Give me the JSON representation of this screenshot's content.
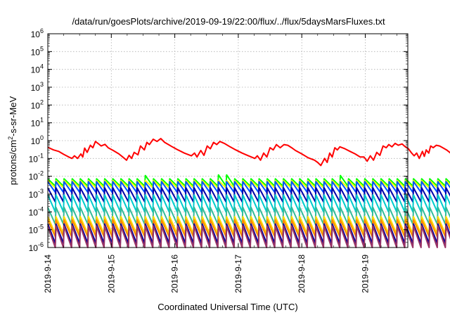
{
  "chart_data": {
    "type": "line",
    "title": "/data/run/goesPlots/archive/2019-09-19/22:00/flux/../flux/5daysMarsFluxes.txt",
    "xlabel": "Coordinated Universal Time (UTC)",
    "ylabel": "protons/cm²-s-sr-MeV",
    "ylabel_parts": {
      "pre": "protons/cm",
      "sup": "2",
      "post": "-s-sr-MeV"
    },
    "yscale": "log",
    "ylim": [
      1e-06,
      1000000.0
    ],
    "y_ticks": [
      {
        "mant": "10",
        "exp": "-6"
      },
      {
        "mant": "10",
        "exp": "-5"
      },
      {
        "mant": "10",
        "exp": "-4"
      },
      {
        "mant": "10",
        "exp": "-3"
      },
      {
        "mant": "10",
        "exp": "-2"
      },
      {
        "mant": "10",
        "exp": "-1"
      },
      {
        "mant": "10",
        "exp": "0"
      },
      {
        "mant": "10",
        "exp": "1"
      },
      {
        "mant": "10",
        "exp": "2"
      },
      {
        "mant": "10",
        "exp": "3"
      },
      {
        "mant": "10",
        "exp": "4"
      },
      {
        "mant": "10",
        "exp": "5"
      },
      {
        "mant": "10",
        "exp": "6"
      }
    ],
    "x_ticks": [
      "2019-9-14",
      "2019-9-15",
      "2019-9-16",
      "2019-9-17",
      "2019-9-18",
      "2019-9-19"
    ],
    "xlim": [
      "2019-09-14 00:00",
      "2019-09-19 22:00"
    ],
    "grid": true,
    "series": [
      {
        "color": "#ff0000",
        "values": [
          [
            0.0,
            0.42
          ],
          [
            0.09,
            0.3
          ],
          [
            0.17,
            0.25
          ],
          [
            0.25,
            0.17
          ],
          [
            0.33,
            0.12
          ],
          [
            0.38,
            0.1
          ],
          [
            0.42,
            0.14
          ],
          [
            0.47,
            0.1
          ],
          [
            0.52,
            0.18
          ],
          [
            0.55,
            0.12
          ],
          [
            0.58,
            0.38
          ],
          [
            0.62,
            0.22
          ],
          [
            0.67,
            0.55
          ],
          [
            0.71,
            0.4
          ],
          [
            0.75,
            0.9
          ],
          [
            0.79,
            0.7
          ],
          [
            0.84,
            0.5
          ],
          [
            0.9,
            0.62
          ],
          [
            0.95,
            0.4
          ],
          [
            1.03,
            0.28
          ],
          [
            1.12,
            0.18
          ],
          [
            1.18,
            0.12
          ],
          [
            1.24,
            0.08
          ],
          [
            1.28,
            0.15
          ],
          [
            1.32,
            0.1
          ],
          [
            1.36,
            0.22
          ],
          [
            1.42,
            0.16
          ],
          [
            1.46,
            0.5
          ],
          [
            1.52,
            0.3
          ],
          [
            1.56,
            0.8
          ],
          [
            1.6,
            0.6
          ],
          [
            1.66,
            1.2
          ],
          [
            1.72,
            0.9
          ],
          [
            1.78,
            1.3
          ],
          [
            1.84,
            0.8
          ],
          [
            1.9,
            0.6
          ],
          [
            1.96,
            0.45
          ],
          [
            2.05,
            0.3
          ],
          [
            2.15,
            0.2
          ],
          [
            2.26,
            0.14
          ],
          [
            2.31,
            0.2
          ],
          [
            2.35,
            0.12
          ],
          [
            2.41,
            0.28
          ],
          [
            2.46,
            0.15
          ],
          [
            2.51,
            0.5
          ],
          [
            2.56,
            0.35
          ],
          [
            2.61,
            0.8
          ],
          [
            2.66,
            0.6
          ],
          [
            2.71,
            0.9
          ],
          [
            2.78,
            0.7
          ],
          [
            2.87,
            0.45
          ],
          [
            2.96,
            0.3
          ],
          [
            3.06,
            0.2
          ],
          [
            3.16,
            0.14
          ],
          [
            3.26,
            0.1
          ],
          [
            3.3,
            0.14
          ],
          [
            3.35,
            0.08
          ],
          [
            3.4,
            0.2
          ],
          [
            3.45,
            0.12
          ],
          [
            3.5,
            0.4
          ],
          [
            3.55,
            0.3
          ],
          [
            3.6,
            0.6
          ],
          [
            3.66,
            0.4
          ],
          [
            3.72,
            0.6
          ],
          [
            3.78,
            0.55
          ],
          [
            3.84,
            0.4
          ],
          [
            3.9,
            0.28
          ],
          [
            4.0,
            0.18
          ],
          [
            4.1,
            0.11
          ],
          [
            4.2,
            0.08
          ],
          [
            4.25,
            0.06
          ],
          [
            4.3,
            0.04
          ],
          [
            4.36,
            0.1
          ],
          [
            4.4,
            0.06
          ],
          [
            4.44,
            0.2
          ],
          [
            4.48,
            0.12
          ],
          [
            4.52,
            0.4
          ],
          [
            4.56,
            0.3
          ],
          [
            4.6,
            0.45
          ],
          [
            4.68,
            0.35
          ],
          [
            4.76,
            0.25
          ],
          [
            4.84,
            0.18
          ],
          [
            4.92,
            0.12
          ],
          [
            4.98,
            0.12
          ],
          [
            5.03,
            0.07
          ],
          [
            5.08,
            0.14
          ],
          [
            5.13,
            0.08
          ],
          [
            5.18,
            0.22
          ],
          [
            5.23,
            0.15
          ],
          [
            5.28,
            0.5
          ],
          [
            5.33,
            0.4
          ],
          [
            5.37,
            0.6
          ],
          [
            5.42,
            0.45
          ],
          [
            5.47,
            0.7
          ],
          [
            5.52,
            0.55
          ],
          [
            5.58,
            0.65
          ],
          [
            5.63,
            0.45
          ],
          [
            5.68,
            0.35
          ],
          [
            5.73,
            0.2
          ],
          [
            5.77,
            0.14
          ],
          [
            5.81,
            0.2
          ],
          [
            5.85,
            0.1
          ],
          [
            5.9,
            0.25
          ],
          [
            5.93,
            0.13
          ],
          [
            5.96,
            0.3
          ],
          [
            6.0,
            0.2
          ],
          [
            6.03,
            0.5
          ],
          [
            6.07,
            0.4
          ],
          [
            6.12,
            0.55
          ],
          [
            6.17,
            0.5
          ],
          [
            6.22,
            0.4
          ],
          [
            6.28,
            0.3
          ],
          [
            6.33,
            0.22
          ],
          [
            6.38,
            0.15
          ],
          [
            6.42,
            0.12
          ],
          [
            6.46,
            0.2
          ],
          [
            6.51,
            0.1
          ],
          [
            6.56,
            0.25
          ],
          [
            6.6,
            0.12
          ],
          [
            6.65,
            0.3
          ],
          [
            6.68,
            0.16
          ],
          [
            6.72,
            0.55
          ],
          [
            6.76,
            0.35
          ],
          [
            6.8,
            0.6
          ],
          [
            6.85,
            0.45
          ],
          [
            6.92,
            0.5
          ]
        ]
      },
      {
        "color": "#00ff00",
        "sawtooth": {
          "base": 0.0045,
          "spread": 1.6,
          "spikes": [
            [
              1.52,
              0.011
            ],
            [
              2.75,
              0.012
            ],
            [
              4.56,
              0.011
            ],
            [
              6.45,
              0.011
            ]
          ]
        }
      },
      {
        "color": "#ffff00",
        "sawtooth": {
          "base": 0.0036,
          "spread": 1.6,
          "spikes": []
        }
      },
      {
        "color": "#0055ff",
        "sawtooth": {
          "base": 0.0025,
          "spread": 2.0,
          "spikes": [
            [
              1.52,
              0.0045
            ],
            [
              2.75,
              0.005
            ],
            [
              6.45,
              0.0045
            ]
          ]
        }
      },
      {
        "color": "#0000aa",
        "sawtooth": {
          "base": 0.0009,
          "spread": 2.5,
          "spikes": []
        }
      },
      {
        "color": "#00cccc",
        "sawtooth": {
          "base": 0.0003,
          "spread": 3.0,
          "spikes": []
        }
      },
      {
        "color": "#33bb99",
        "sawtooth": {
          "base": 6e-05,
          "spread": 3.0,
          "spikes": []
        }
      },
      {
        "color": "#ffdd00",
        "sawtooth": {
          "base": 1.8e-05,
          "spread": 3.0,
          "spikes": []
        }
      },
      {
        "color": "#ff8800",
        "sawtooth": {
          "base": 1.2e-05,
          "spread": 3.0,
          "spikes": []
        }
      },
      {
        "color": "#000099",
        "sawtooth": {
          "base": 6e-06,
          "spread": 3.5,
          "spikes": []
        }
      },
      {
        "color": "#993366",
        "sawtooth": {
          "base": 4e-06,
          "spread": 4.0,
          "spikes": []
        }
      }
    ]
  }
}
